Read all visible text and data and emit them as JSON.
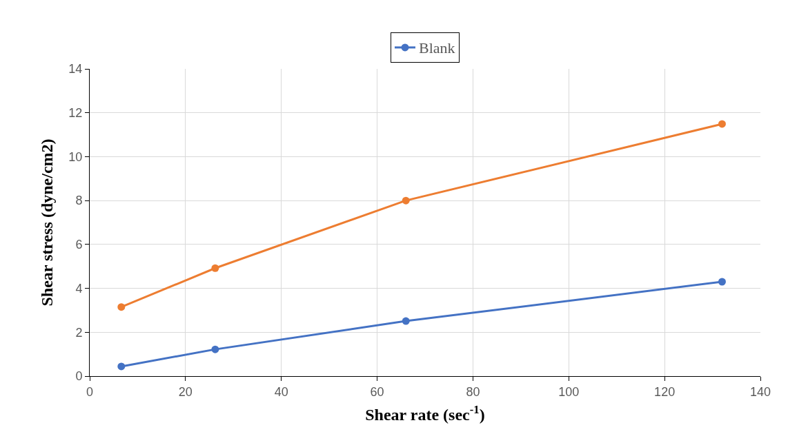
{
  "chart_data": {
    "type": "line",
    "xlabel": "Shear rate (sec$^{-1}$)",
    "ylabel": "Shear stress (dyne/cm2)",
    "series": [
      {
        "name": "Blank",
        "color": "#4472c4",
        "x": [
          6.6,
          26.2,
          66,
          132
        ],
        "values": [
          0.44,
          1.22,
          2.51,
          4.3
        ]
      },
      {
        "color": "#ed7d31",
        "x": [
          6.6,
          26.2,
          66,
          132
        ],
        "values": [
          3.15,
          4.92,
          8.0,
          11.49
        ]
      }
    ],
    "xlim": [
      0,
      140
    ],
    "xticks": [
      0,
      20,
      40,
      60,
      80,
      100,
      120,
      140
    ],
    "ylim": [
      0,
      14
    ],
    "yticks": [
      0,
      2,
      4,
      6,
      8,
      10,
      12,
      14
    ],
    "grid": true,
    "legend": "top",
    "marker": "circle",
    "line_style": "solid"
  }
}
